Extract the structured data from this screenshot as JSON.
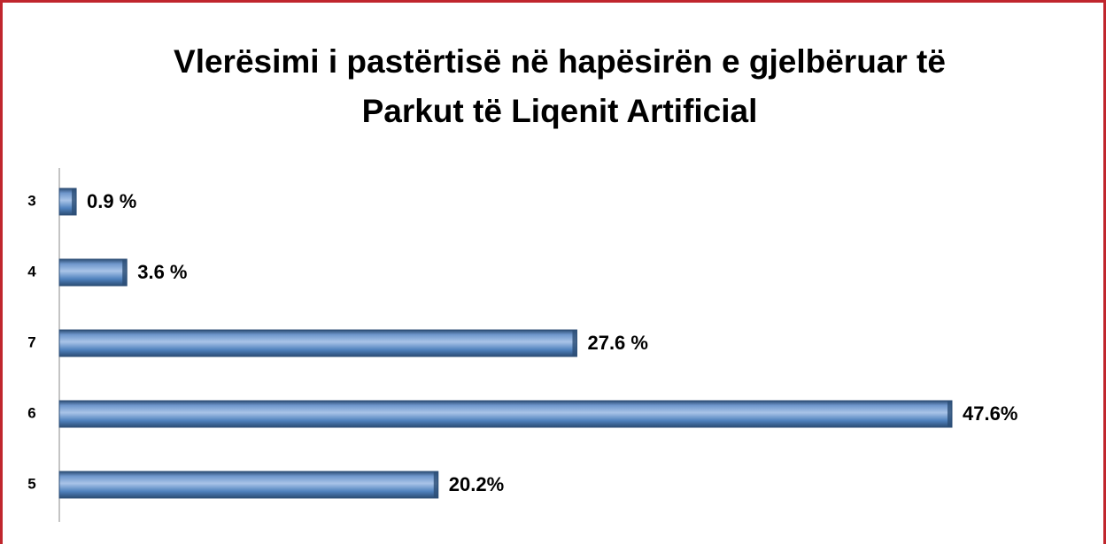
{
  "chart_data": {
    "type": "bar",
    "orientation": "horizontal",
    "title": [
      "Vlerësimi i pastërtisë në hapësirën e gjelbëruar të",
      "Parkut të Liqenit Artificial"
    ],
    "categories": [
      "3",
      "4",
      "7",
      "6",
      "5"
    ],
    "values": [
      0.9,
      3.6,
      27.6,
      47.6,
      20.2
    ],
    "value_labels": [
      "0.9 %",
      "3.6 %",
      "27.6 %",
      "47.6%",
      "20.2%"
    ],
    "color": "#4f81bd"
  }
}
